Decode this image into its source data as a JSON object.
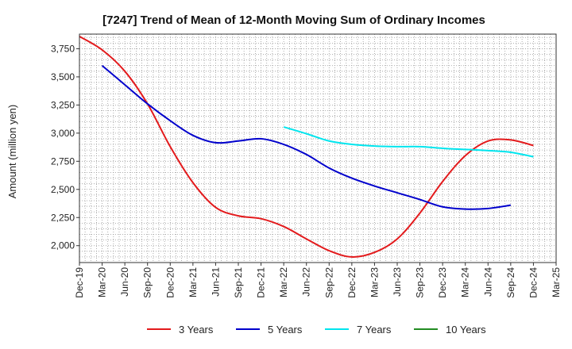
{
  "chart_data": {
    "type": "line",
    "title": "[7247]  Trend of Mean of 12-Month Moving Sum of Ordinary Incomes",
    "xlabel": "",
    "ylabel": "Amount (million yen)",
    "ylim": [
      1850,
      3880
    ],
    "yticks": [
      2000,
      2250,
      2500,
      2750,
      3000,
      3250,
      3500,
      3750
    ],
    "ytick_labels": [
      "2,000",
      "2,250",
      "2,500",
      "2,750",
      "3,000",
      "3,250",
      "3,500",
      "3,750"
    ],
    "x_labels": [
      "Dec-19",
      "Mar-20",
      "Jun-20",
      "Sep-20",
      "Dec-20",
      "Mar-21",
      "Jun-21",
      "Sep-21",
      "Dec-21",
      "Mar-22",
      "Jun-22",
      "Sep-22",
      "Dec-22",
      "Mar-23",
      "Jun-23",
      "Sep-23",
      "Dec-23",
      "Mar-24",
      "Jun-24",
      "Sep-24",
      "Dec-24",
      "Mar-25"
    ],
    "grid": true,
    "legend_position": "bottom",
    "series": [
      {
        "name": "3 Years",
        "color": "#e31a1c",
        "start_index": 0,
        "values": [
          3860,
          3740,
          3550,
          3260,
          2880,
          2560,
          2340,
          2265,
          2240,
          2170,
          2060,
          1955,
          1900,
          1940,
          2060,
          2290,
          2570,
          2800,
          2930,
          2940,
          2890
        ]
      },
      {
        "name": "5 Years",
        "color": "#0000cc",
        "start_index": 1,
        "values": [
          3600,
          3430,
          3260,
          3110,
          2980,
          2915,
          2930,
          2950,
          2900,
          2810,
          2690,
          2600,
          2530,
          2470,
          2410,
          2345,
          2325,
          2330,
          2360
        ]
      },
      {
        "name": "7 Years",
        "color": "#00e5ee",
        "start_index": 9,
        "values": [
          3055,
          2995,
          2930,
          2900,
          2885,
          2880,
          2880,
          2865,
          2855,
          2845,
          2830,
          2790
        ]
      },
      {
        "name": "10 Years",
        "color": "#228b22",
        "start_index": 0,
        "values": []
      }
    ]
  }
}
